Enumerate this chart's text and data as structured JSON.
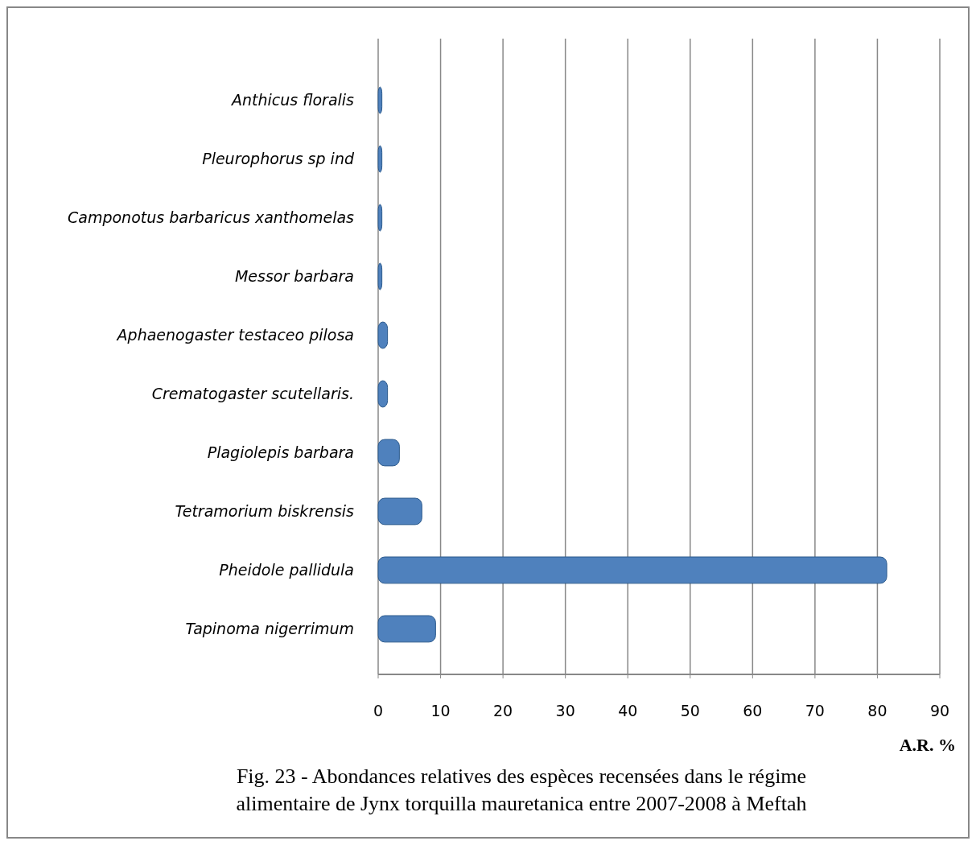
{
  "chart_data": {
    "type": "bar",
    "orientation": "horizontal",
    "title": "Fig.  23 - Abondances  relatives des espèces recensées dans le régime alimentaire de Jynx torquilla mauretanica entre 2007-2008 à Meftah",
    "xlabel": "A.R. %",
    "categories": [
      "Anthicus floralis",
      "Pleurophorus sp ind",
      "Camponotus barbaricus xanthomelas",
      "Messor barbara",
      "Aphaenogaster testaceo pilosa",
      "Crematogaster scutellaris.",
      "Plagiolepis barbara",
      "Tetramorium biskrensis",
      "Pheidole pallidula",
      "Tapinoma nigerrimum"
    ],
    "values": [
      0.6,
      0.6,
      0.6,
      0.6,
      1.5,
      1.5,
      3.4,
      7,
      81.5,
      9.2
    ],
    "color": "#4f81bd",
    "xlim": [
      0,
      90
    ],
    "xticks": [
      0,
      10,
      20,
      30,
      40,
      50,
      60,
      70,
      80,
      90
    ],
    "grid": "x"
  }
}
